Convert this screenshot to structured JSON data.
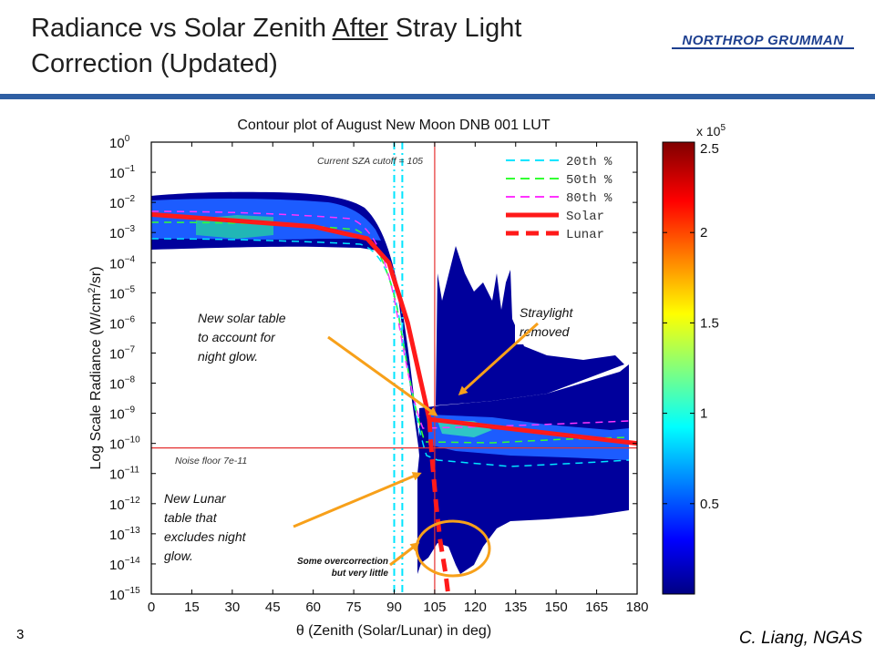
{
  "slide": {
    "title_pre": "Radiance vs Solar Zenith ",
    "title_underlined": "After",
    "title_post": " Stray Light Correction (Updated)",
    "logo_text": "NORTHROP GRUMMAN",
    "page_number": "3",
    "credit": "C. Liang, NGAS"
  },
  "chart_data": {
    "type": "heatmap",
    "title": "Contour plot of August New Moon DNB 001 LUT",
    "xlabel": "θ (Zenith (Solar/Lunar) in deg)",
    "ylabel_pre": "Log Scale Radiance (W/cm",
    "ylabel_sup": "2",
    "ylabel_post": "/sr)",
    "xlim": [
      0,
      180
    ],
    "xticks": [
      0,
      15,
      30,
      45,
      60,
      75,
      90,
      105,
      120,
      135,
      150,
      165,
      180
    ],
    "ylim_log10": [
      -15,
      0
    ],
    "yticks": [
      {
        "exp": 0,
        "label": "10",
        "sup": "0"
      },
      {
        "exp": -1,
        "label": "10",
        "sup": "−1"
      },
      {
        "exp": -2,
        "label": "10",
        "sup": "−2"
      },
      {
        "exp": -3,
        "label": "10",
        "sup": "−3"
      },
      {
        "exp": -4,
        "label": "10",
        "sup": "−4"
      },
      {
        "exp": -5,
        "label": "10",
        "sup": "−5"
      },
      {
        "exp": -6,
        "label": "10",
        "sup": "−6"
      },
      {
        "exp": -7,
        "label": "10",
        "sup": "−7"
      },
      {
        "exp": -8,
        "label": "10",
        "sup": "−8"
      },
      {
        "exp": -9,
        "label": "10",
        "sup": "−9"
      },
      {
        "exp": -10,
        "label": "10",
        "sup": "−10"
      },
      {
        "exp": -11,
        "label": "10",
        "sup": "−11"
      },
      {
        "exp": -12,
        "label": "10",
        "sup": "−12"
      },
      {
        "exp": -13,
        "label": "10",
        "sup": "−13"
      },
      {
        "exp": -14,
        "label": "10",
        "sup": "−14"
      },
      {
        "exp": -15,
        "label": "10",
        "sup": "−15"
      }
    ],
    "colorbar": {
      "multiplier_label": "x 10",
      "multiplier_sup": "5",
      "range": [
        0,
        2.5
      ],
      "ticks": [
        "0.5",
        "1",
        "1.5",
        "2",
        "2.5"
      ],
      "tick_values": [
        0.5,
        1,
        1.5,
        2,
        2.5
      ]
    },
    "legend": {
      "placement": "top-right",
      "entries": [
        {
          "label": "20th %",
          "color": "#00e5ff",
          "style": "dashed"
        },
        {
          "label": "50th %",
          "color": "#33ff33",
          "style": "dashed"
        },
        {
          "label": "80th %",
          "color": "#ff33ff",
          "style": "dashed"
        },
        {
          "label": "Solar",
          "color": "#ff1a1a",
          "style": "solid"
        },
        {
          "label": "Lunar",
          "color": "#ff1a1a",
          "style": "dashed"
        }
      ]
    },
    "series": [
      {
        "name": "Solar",
        "x": [
          0,
          60,
          80,
          88,
          95,
          100,
          103,
          180
        ],
        "log_y": [
          -2.4,
          -2.8,
          -3.2,
          -4.0,
          -6.0,
          -8.0,
          -9.2,
          -10.0
        ]
      },
      {
        "name": "Lunar",
        "x": [
          103,
          104,
          105.5,
          107,
          109,
          110
        ],
        "log_y": [
          -9.2,
          -10.5,
          -12.0,
          -13.2,
          -14.3,
          -15.0
        ]
      }
    ],
    "reference_lines": {
      "sza_cutoff_deg": 105,
      "sza_cutoff_label": "Current SZA cutoff = 105",
      "noise_floor_log10": -10.15,
      "noise_floor_label": "Noise floor 7e-11",
      "cyan_dashdot_x": [
        90,
        93
      ]
    },
    "annotations": [
      {
        "text": [
          "New solar table",
          "to account for",
          "night glow."
        ]
      },
      {
        "text": [
          "Straylight",
          "removed"
        ]
      },
      {
        "text": [
          "New Lunar",
          "table that",
          "excludes night",
          "glow."
        ]
      },
      {
        "text": [
          "Some overcorrection",
          "but very little"
        ]
      }
    ],
    "colors": {
      "background_fill": "#00009c",
      "frame": "#000000",
      "arrow": "#f7a01a",
      "reference": "#e53030"
    }
  }
}
